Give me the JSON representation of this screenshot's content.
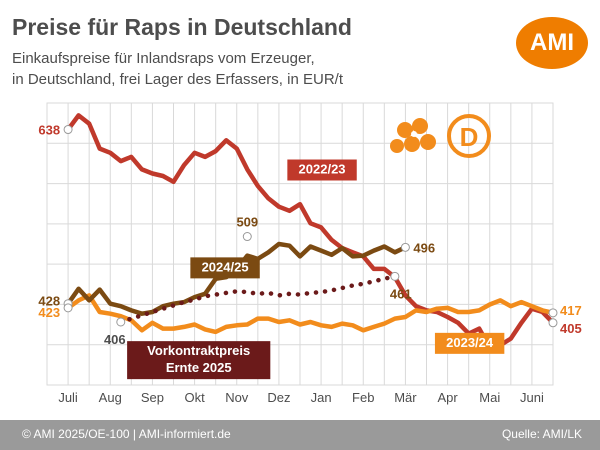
{
  "header": {
    "title": "Preise für Raps in Deutschland",
    "subtitle_line1": "Einkaufspreise für Inlandsraps vom Erzeuger,",
    "subtitle_line2": "in Deutschland, frei Lager des Erfassers, in EUR/t",
    "logo_text": "AMI",
    "badge_text": "D"
  },
  "footer": {
    "left": "© AMI 2025/OE-100 | AMI-informiert.de",
    "right": "Quelle: AMI/LK"
  },
  "colors": {
    "s2022": "#c0392b",
    "s2023": "#f28c1c",
    "s2024": "#7b4a12",
    "vork": "#6b1a1a",
    "ami_orange": "#ef7d00",
    "grid": "#d9d9d9"
  },
  "chart_data": {
    "type": "line",
    "x_ticks": [
      "Juli",
      "Aug",
      "Sep",
      "Okt",
      "Nov",
      "Dez",
      "Jan",
      "Feb",
      "Mär",
      "Apr",
      "Mai",
      "Juni"
    ],
    "ylim": [
      330,
      670
    ],
    "grid": true,
    "series": [
      {
        "name": "2022/23",
        "key": "s2022",
        "style": "solid",
        "x": [
          0,
          0.25,
          0.5,
          0.75,
          1,
          1.25,
          1.5,
          1.75,
          2,
          2.25,
          2.5,
          2.75,
          3,
          3.25,
          3.5,
          3.75,
          4,
          4.25,
          4.5,
          4.75,
          5,
          5.25,
          5.5,
          5.75,
          6,
          6.25,
          6.5,
          6.75,
          7,
          7.25,
          7.5,
          7.75,
          8,
          8.25,
          8.5,
          8.75,
          9,
          9.25,
          9.5,
          9.75,
          10,
          10.25,
          10.5,
          10.75,
          11,
          11.25,
          11.5
        ],
        "y": [
          638,
          655,
          645,
          615,
          610,
          600,
          605,
          590,
          585,
          582,
          575,
          595,
          610,
          605,
          612,
          625,
          615,
          590,
          570,
          555,
          545,
          540,
          548,
          525,
          520,
          505,
          495,
          490,
          485,
          470,
          470,
          460,
          438,
          425,
          420,
          418,
          412,
          405,
          392,
          398,
          375,
          378,
          386,
          405,
          422,
          418,
          405
        ]
      },
      {
        "name": "2023/24",
        "key": "s2023",
        "style": "solid",
        "x": [
          0,
          0.25,
          0.5,
          0.75,
          1,
          1.25,
          1.5,
          1.75,
          2,
          2.25,
          2.5,
          2.75,
          3,
          3.25,
          3.5,
          3.75,
          4,
          4.25,
          4.5,
          4.75,
          5,
          5.25,
          5.5,
          5.75,
          6,
          6.25,
          6.5,
          6.75,
          7,
          7.25,
          7.5,
          7.75,
          8,
          8.25,
          8.5,
          8.75,
          9,
          9.25,
          9.5,
          9.75,
          10,
          10.25,
          10.5,
          10.75,
          11,
          11.25,
          11.5
        ],
        "y": [
          423,
          432,
          438,
          418,
          416,
          413,
          408,
          396,
          405,
          398,
          398,
          400,
          403,
          397,
          394,
          400,
          402,
          403,
          410,
          410,
          406,
          408,
          403,
          406,
          402,
          400,
          404,
          402,
          396,
          400,
          404,
          410,
          412,
          420,
          418,
          422,
          423,
          418,
          418,
          420,
          427,
          432,
          425,
          430,
          425,
          420,
          417
        ]
      },
      {
        "name": "2024/25",
        "key": "s2024",
        "style": "solid",
        "x": [
          0,
          0.25,
          0.5,
          0.75,
          1,
          1.25,
          1.5,
          1.75,
          2,
          2.25,
          2.5,
          2.75,
          3,
          3.25,
          3.5,
          3.75,
          4,
          4.25,
          4.5,
          4.75,
          5,
          5.25,
          5.5,
          5.75,
          6,
          6.25,
          6.5,
          6.75,
          7,
          7.25,
          7.5,
          7.75,
          8
        ],
        "y": [
          428,
          446,
          432,
          445,
          428,
          425,
          420,
          416,
          418,
          425,
          428,
          430,
          436,
          440,
          458,
          460,
          470,
          486,
          482,
          490,
          500,
          498,
          485,
          497,
          492,
          487,
          495,
          485,
          486,
          492,
          497,
          490,
          496
        ]
      },
      {
        "name": "Vorkontraktpreis Ernte 2025",
        "key": "vork",
        "style": "dotted",
        "x": [
          1.25,
          1.5,
          1.75,
          2,
          2.25,
          2.5,
          2.75,
          3,
          3.25,
          3.5,
          3.75,
          4,
          4.25,
          4.5,
          4.75,
          5,
          5.25,
          5.5,
          5.75,
          6,
          6.25,
          6.5,
          6.75,
          7,
          7.25,
          7.5,
          7.75
        ],
        "y": [
          406,
          410,
          414,
          418,
          422,
          426,
          430,
          433,
          437,
          439,
          441,
          443,
          442,
          440,
          441,
          438,
          440,
          439,
          441,
          442,
          444,
          447,
          450,
          452,
          455,
          458,
          461
        ]
      }
    ],
    "data_labels": [
      {
        "text": "638",
        "x": 0,
        "y": 638,
        "key": "s2022",
        "anchor": "end",
        "dx": -8,
        "dy": 5,
        "marker": true
      },
      {
        "text": "428",
        "x": 0,
        "y": 428,
        "key": "s2024",
        "anchor": "end",
        "dx": -8,
        "dy": 2,
        "marker": true
      },
      {
        "text": "423",
        "x": 0,
        "y": 423,
        "key": "s2023",
        "anchor": "end",
        "dx": -8,
        "dy": 9,
        "marker": true
      },
      {
        "text": "406",
        "x": 1.25,
        "y": 406,
        "key": "s2024",
        "anchor": "middle",
        "dx": -6,
        "dy": 22,
        "marker": true,
        "text_color": "#4d4d4d"
      },
      {
        "text": "509",
        "x": 4.25,
        "y": 509,
        "key": "s2024",
        "anchor": "middle",
        "dx": 0,
        "dy": -10,
        "marker": true
      },
      {
        "text": "496",
        "x": 8,
        "y": 496,
        "key": "s2024",
        "anchor": "start",
        "dx": 8,
        "dy": 5,
        "marker": true
      },
      {
        "text": "461",
        "x": 7.75,
        "y": 461,
        "key": "s2024",
        "anchor": "start",
        "dx": -5,
        "dy": 22,
        "marker": true
      },
      {
        "text": "417",
        "x": 11.5,
        "y": 417,
        "key": "s2023",
        "anchor": "start",
        "dx": 7,
        "dy": 2,
        "marker": true
      },
      {
        "text": "405",
        "x": 11.5,
        "y": 405,
        "key": "s2022",
        "anchor": "start",
        "dx": 7,
        "dy": 10,
        "marker": true
      }
    ],
    "series_labels": [
      {
        "lines": [
          "2022/23"
        ],
        "x": 5.2,
        "y": 585,
        "key": "s2022"
      },
      {
        "lines": [
          "2024/25"
        ],
        "x": 2.9,
        "y": 467,
        "key": "s2024"
      },
      {
        "lines": [
          "2023/24"
        ],
        "x": 8.7,
        "y": 376,
        "key": "s2023"
      },
      {
        "lines": [
          "Vorkontraktpreis",
          "Ernte 2025"
        ],
        "x": 1.4,
        "y": 366,
        "key": "vork"
      }
    ]
  }
}
